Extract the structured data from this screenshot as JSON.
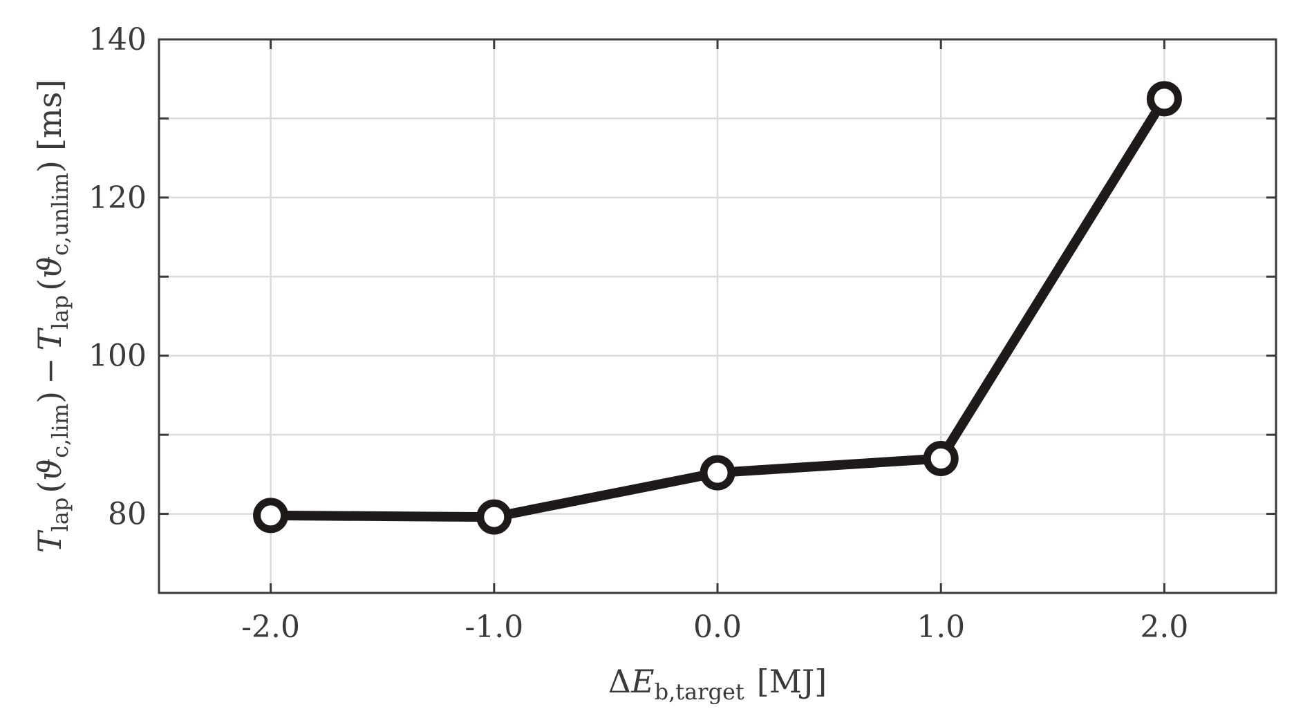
{
  "chart_data": {
    "type": "line",
    "title": "",
    "xlabel": {
      "prefix": "Δ",
      "symbol": "E",
      "subscript": "b,target",
      "unit": "[MJ]"
    },
    "ylabel": {
      "t1_symbol": "T",
      "t1_sub": "lap",
      "theta1": "ϑ",
      "theta1_sub": "c,lim",
      "minus": "−",
      "t2_symbol": "T",
      "t2_sub": "lap",
      "theta2": "ϑ",
      "theta2_sub": "c,unlim",
      "unit": "[ms]"
    },
    "xlim": [
      -2.5,
      2.5
    ],
    "ylim": [
      70,
      140
    ],
    "xticks": [
      -2.0,
      -1.0,
      0.0,
      1.0,
      2.0
    ],
    "xtick_labels": [
      "-2.0",
      "-1.0",
      "0.0",
      "1.0",
      "2.0"
    ],
    "yticks": [
      70,
      80,
      90,
      100,
      110,
      120,
      130,
      140
    ],
    "ytick_labels": [
      "",
      "80",
      "",
      "100",
      "",
      "120",
      "",
      "140"
    ],
    "grid": true,
    "legend": "none",
    "colors": {
      "line": "#1e1a1a",
      "axis": "#3a3a3a",
      "grid": "#dcdcdc"
    },
    "series": [
      {
        "x": [
          -2.0,
          -1.0,
          0.0,
          1.0,
          2.0
        ],
        "y": [
          79.8,
          79.6,
          85.2,
          87.0,
          132.5
        ],
        "marker": "circle-open"
      }
    ]
  }
}
